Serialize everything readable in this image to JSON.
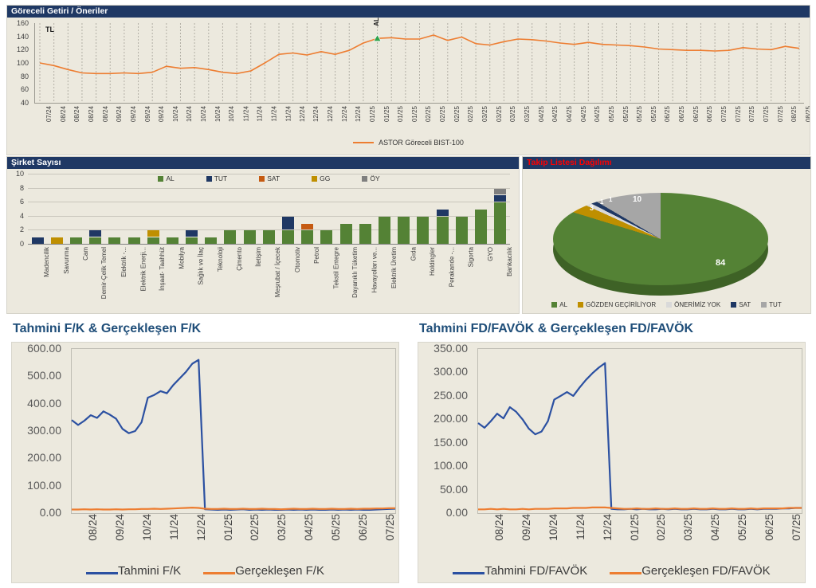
{
  "theme": {
    "header_bg": "#1F3864",
    "panel_bg": "#ECE9DE",
    "pie_title_red": "#FF0000",
    "bottom_title_blue": "#1F4E79",
    "orange_line": "#ED7D31",
    "blue_line": "#2B50A1",
    "green": "#548235"
  },
  "chart_data": [
    {
      "type": "line",
      "title": "Göreceli Getiri / Öneriler",
      "unit_label": "TL",
      "marker_label": "AL",
      "marker_index": 24,
      "marker_color": "#2EA24C",
      "ylim": [
        40,
        160
      ],
      "y_ticks": [
        "160",
        "140",
        "120",
        "100",
        "80",
        "60",
        "40"
      ],
      "x": [
        "07/24",
        "08/24",
        "08/24",
        "08/24",
        "08/24",
        "09/24",
        "09/24",
        "09/24",
        "09/24",
        "10/24",
        "10/24",
        "10/24",
        "10/24",
        "10/24",
        "11/24",
        "11/24",
        "11/24",
        "11/24",
        "12/24",
        "12/24",
        "12/24",
        "12/24",
        "12/24",
        "01/25",
        "01/25",
        "01/25",
        "01/25",
        "02/25",
        "02/25",
        "02/25",
        "02/25",
        "03/25",
        "03/25",
        "03/25",
        "03/25",
        "04/25",
        "04/25",
        "04/25",
        "04/25",
        "04/25",
        "05/25",
        "05/25",
        "05/25",
        "05/25",
        "06/25",
        "06/25",
        "06/25",
        "06/25",
        "07/25",
        "07/25",
        "07/25",
        "07/25",
        "07/25",
        "08/25",
        "08/25"
      ],
      "series": [
        {
          "name": "ASTOR Göreceli BIST-100",
          "color": "#ED7D31",
          "values": [
            100,
            96,
            90,
            85,
            84,
            84,
            85,
            84,
            86,
            95,
            92,
            93,
            90,
            86,
            84,
            88,
            100,
            113,
            115,
            112,
            117,
            113,
            119,
            130,
            137,
            138,
            136,
            136,
            142,
            134,
            139,
            129,
            127,
            132,
            136,
            135,
            133,
            130,
            128,
            131,
            128,
            127,
            126,
            124,
            121,
            120,
            119,
            119,
            118,
            119,
            123,
            121,
            120,
            125,
            122
          ]
        }
      ],
      "grid": "vertical-dashed",
      "legend_position": "bottom"
    },
    {
      "type": "bar",
      "stacked": true,
      "title": "Şirket Sayısı",
      "ylim": [
        0,
        10
      ],
      "y_ticks": [
        "10",
        "8",
        "6",
        "4",
        "2",
        "0"
      ],
      "categories": [
        "Madencilik",
        "Savunma",
        "Cam",
        "Demir-Çelik Temel",
        "Elektrik -...",
        "Elektrik Enerji...",
        "İnşaat- Taahhüt",
        "Mobilya",
        "Sağlık ve İlaç",
        "Teknoloji",
        "Çimento",
        "İletişim",
        "Meşrubat / İçecek",
        "Otomotiv",
        "Petrol",
        "Tekstil Entegre",
        "Dayanıklı Tüketim",
        "Havayolları ve...",
        "Elektrik Üretim",
        "Gıda",
        "Holdingler",
        "Perakande -...",
        "Sigorta",
        "GYO",
        "Bankacılık"
      ],
      "series": [
        {
          "name": "AL",
          "color": "#548235",
          "values": [
            0,
            0,
            1,
            1,
            1,
            1,
            1,
            1,
            1,
            1,
            2,
            2,
            2,
            2,
            2,
            2,
            3,
            3,
            4,
            4,
            4,
            4,
            4,
            5,
            6
          ]
        },
        {
          "name": "TUT",
          "color": "#1F3864",
          "values": [
            1,
            0,
            0,
            1,
            0,
            0,
            0,
            0,
            1,
            0,
            0,
            0,
            0,
            2,
            0,
            0,
            0,
            0,
            0,
            0,
            0,
            1,
            0,
            0,
            1
          ]
        },
        {
          "name": "SAT",
          "color": "#C55A11",
          "values": [
            0,
            0,
            0,
            0,
            0,
            0,
            0,
            0,
            0,
            0,
            0,
            0,
            0,
            0,
            1,
            0,
            0,
            0,
            0,
            0,
            0,
            0,
            0,
            0,
            0
          ]
        },
        {
          "name": "GG",
          "color": "#BF8F00",
          "values": [
            0,
            1,
            0,
            0,
            0,
            0,
            1,
            0,
            0,
            0,
            0,
            0,
            0,
            0,
            0,
            0,
            0,
            0,
            0,
            0,
            0,
            0,
            0,
            0,
            0
          ]
        },
        {
          "name": "ÖY",
          "color": "#7F7F7F",
          "values": [
            0,
            0,
            0,
            0,
            0,
            0,
            0,
            0,
            0,
            0,
            0,
            0,
            0,
            0,
            0,
            0,
            0,
            0,
            0,
            0,
            0,
            0,
            0,
            0,
            1
          ]
        }
      ],
      "legend_position": "top"
    },
    {
      "type": "pie",
      "effect": "3d",
      "title": "Takip Listesi Dağılımı",
      "labels": [
        "AL",
        "GÖZDEN GEÇİRİLİYOR",
        "ÖNERİMİZ YOK",
        "SAT",
        "TUT"
      ],
      "values": [
        84,
        3,
        1,
        1,
        10
      ],
      "colors": [
        "#548235",
        "#BF8F00",
        "#D9D9D9",
        "#1F3864",
        "#A6A6A6"
      ],
      "legend_position": "bottom"
    },
    {
      "type": "line",
      "title": "Tahmini F/K & Gerçekleşen F/K",
      "ylim": [
        0,
        600
      ],
      "y_ticks": [
        "600.00",
        "500.00",
        "400.00",
        "300.00",
        "200.00",
        "100.00",
        "0.00"
      ],
      "x": [
        "08/24",
        "09/24",
        "10/24",
        "11/24",
        "12/24",
        "01/25",
        "02/25",
        "03/25",
        "04/25",
        "05/25",
        "06/25",
        "07/25"
      ],
      "series": [
        {
          "name": "Tahmini F/K",
          "color": "#2B50A1",
          "values": [
            340,
            322,
            338,
            358,
            348,
            372,
            360,
            345,
            308,
            292,
            300,
            332,
            422,
            432,
            446,
            438,
            468,
            492,
            516,
            546,
            560,
            14,
            13,
            12,
            13,
            12,
            13,
            14,
            12,
            13,
            12,
            13,
            12,
            12,
            13,
            12,
            13,
            12,
            13,
            12,
            12,
            13,
            12,
            13,
            12,
            13,
            12,
            12,
            13,
            14,
            15,
            16
          ]
        },
        {
          "name": "Gerçekleşen F/K",
          "color": "#ED7D31",
          "values": [
            13,
            13,
            14,
            13,
            14,
            13,
            13,
            14,
            13,
            14,
            14,
            15,
            15,
            16,
            15,
            16,
            17,
            18,
            19,
            20,
            19,
            16,
            15,
            15,
            16,
            15,
            15,
            16,
            15,
            15,
            16,
            15,
            15,
            14,
            15,
            16,
            15,
            15,
            16,
            15,
            15,
            16,
            15,
            15,
            16,
            15,
            16,
            16,
            17,
            17,
            18,
            18
          ]
        }
      ],
      "legend_position": "bottom"
    },
    {
      "type": "line",
      "title": "Tahmini FD/FAVÖK & Gerçekleşen FD/FAVÖK",
      "ylim": [
        0,
        350
      ],
      "y_ticks": [
        "350.00",
        "300.00",
        "250.00",
        "200.00",
        "150.00",
        "100.00",
        "50.00",
        "0.00"
      ],
      "x": [
        "08/24",
        "09/24",
        "10/24",
        "11/24",
        "12/24",
        "01/25",
        "02/25",
        "03/25",
        "04/25",
        "05/25",
        "06/25",
        "07/25"
      ],
      "series": [
        {
          "name": "Tahmini FD/FAVÖK",
          "color": "#2B50A1",
          "values": [
            192,
            182,
            196,
            212,
            202,
            226,
            216,
            200,
            180,
            168,
            174,
            196,
            242,
            250,
            258,
            250,
            268,
            284,
            298,
            310,
            320,
            9,
            8,
            8,
            9,
            8,
            9,
            8,
            8,
            9,
            8,
            9,
            8,
            8,
            9,
            8,
            8,
            9,
            8,
            8,
            9,
            8,
            8,
            9,
            8,
            9,
            9,
            9,
            10,
            10,
            11,
            11
          ]
        },
        {
          "name": "Gerçekleşen FD/FAVÖK",
          "color": "#ED7D31",
          "values": [
            8,
            8,
            9,
            8,
            9,
            8,
            8,
            9,
            8,
            9,
            9,
            9,
            10,
            10,
            10,
            11,
            11,
            11,
            12,
            12,
            12,
            11,
            10,
            9,
            9,
            10,
            9,
            9,
            10,
            9,
            9,
            10,
            9,
            9,
            10,
            9,
            9,
            10,
            9,
            9,
            10,
            9,
            9,
            10,
            9,
            10,
            10,
            10,
            10,
            11,
            11,
            11
          ]
        }
      ],
      "legend_position": "bottom"
    }
  ]
}
